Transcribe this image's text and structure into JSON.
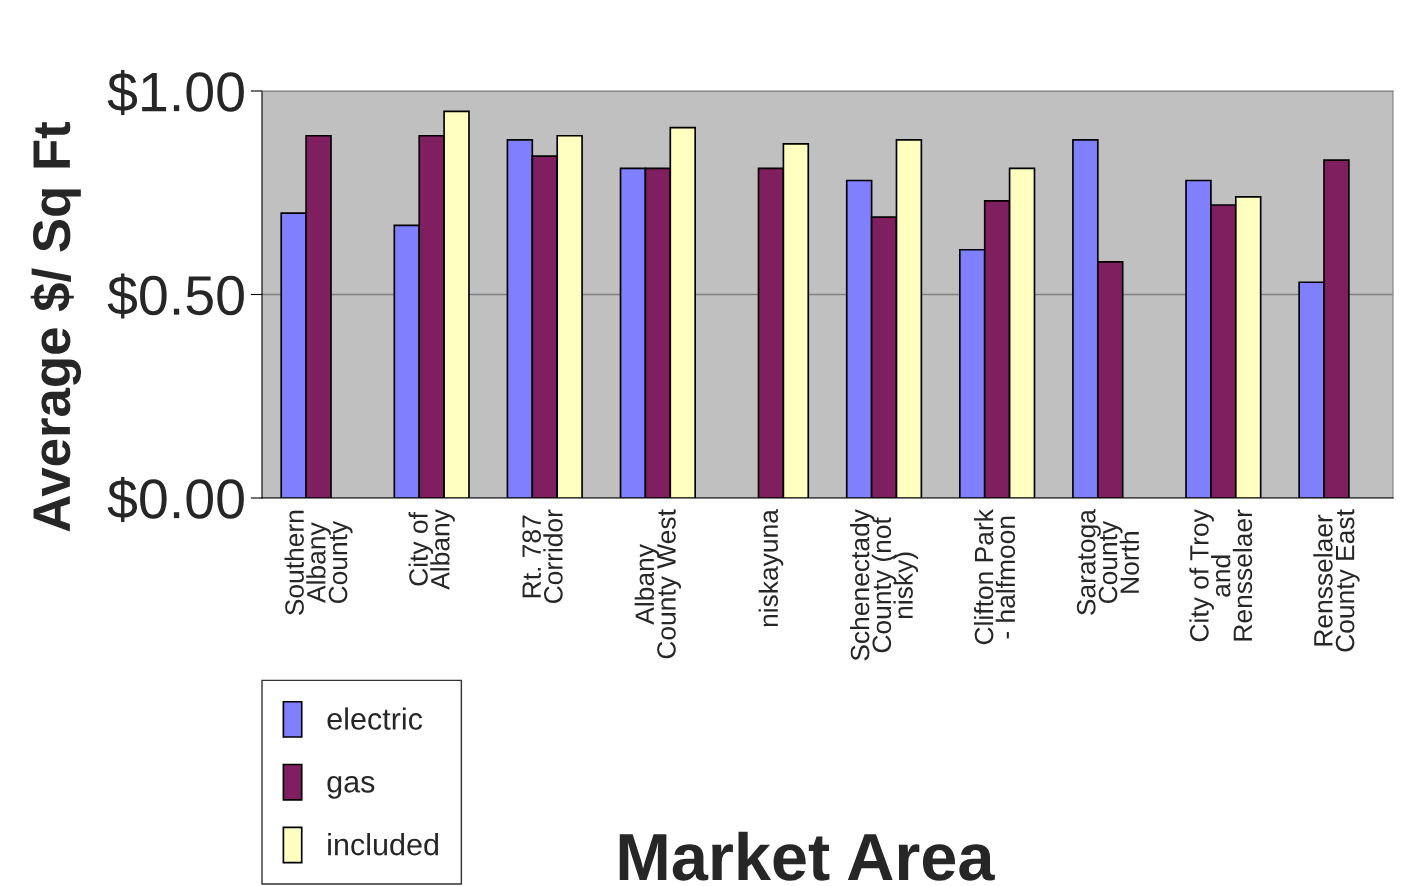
{
  "chart_data": {
    "type": "bar",
    "xlabel": "Market Area",
    "ylabel": "Average $/ Sq Ft",
    "categories": [
      "Southern\nAlbany\nCounty",
      "City of\nAlbany",
      "Rt. 787\nCorridor",
      "Albany\nCounty West",
      "niskayuna",
      "Schenectady\nCounty (not\nnisky)",
      "Clifton Park\n- halfmoon",
      "Saratoga\nCounty\nNorth",
      "City of Troy\nand\nRensselaer",
      "Rensselaer\nCounty East"
    ],
    "series": [
      {
        "name": "electric",
        "color": "#8080ff",
        "values": [
          0.7,
          0.67,
          0.88,
          0.81,
          null,
          0.78,
          0.61,
          0.88,
          0.78,
          0.53
        ]
      },
      {
        "name": "gas",
        "color": "#801f60",
        "values": [
          0.89,
          0.89,
          0.84,
          0.81,
          0.81,
          0.69,
          0.73,
          0.58,
          0.72,
          0.83
        ]
      },
      {
        "name": "included",
        "color": "#ffffc0",
        "values": [
          null,
          0.95,
          0.89,
          0.91,
          0.87,
          0.88,
          0.81,
          null,
          0.74,
          null
        ]
      }
    ],
    "ylim": [
      0,
      1
    ],
    "yticks": [
      {
        "value": 0,
        "label": "$0.00"
      },
      {
        "value": 0.5,
        "label": "$0.50"
      },
      {
        "value": 1,
        "label": "$1.00"
      }
    ],
    "grid": "y",
    "legend": "bottom left"
  }
}
